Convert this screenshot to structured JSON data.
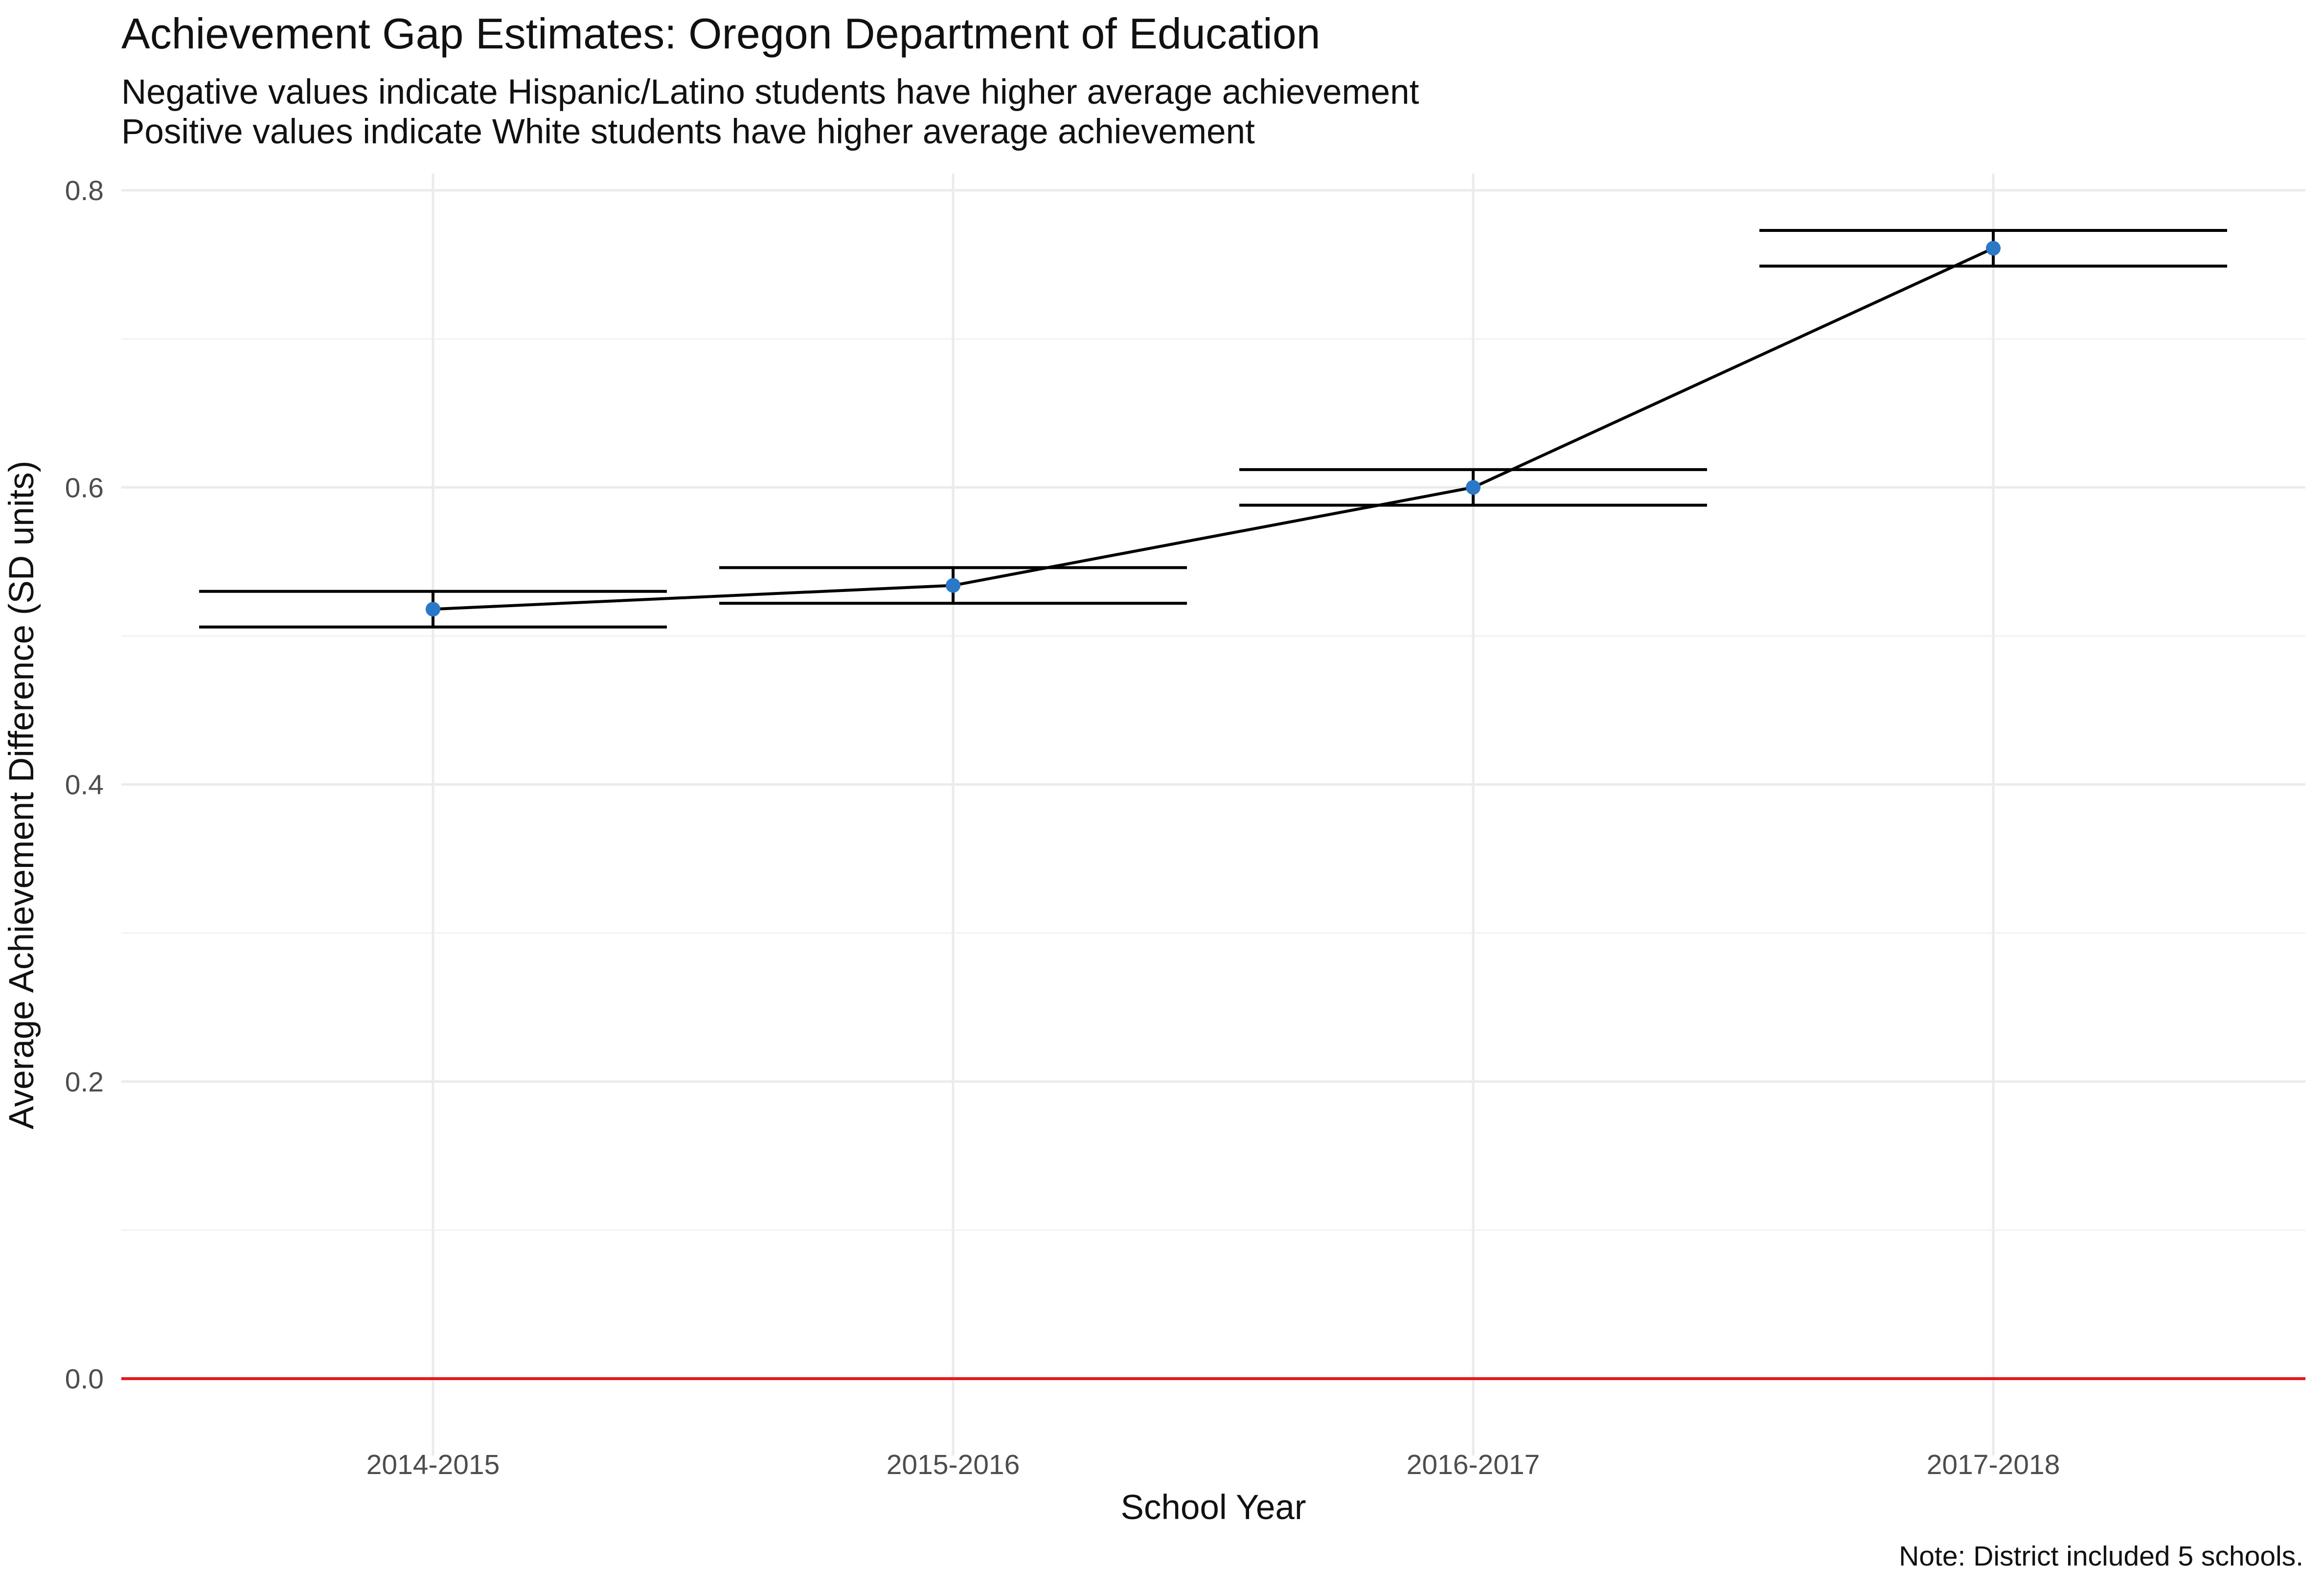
{
  "chart_data": {
    "type": "line",
    "title": "Achievement Gap Estimates: Oregon Department of Education",
    "subtitle": [
      "Negative values indicate Hispanic/Latino students have higher average achievement",
      "Positive values indicate White students have higher average achievement"
    ],
    "xlabel": "School Year",
    "ylabel": "Average Achievement Difference (SD units)",
    "caption": "Note: District included 5 schools.",
    "categories": [
      "2014-2015",
      "2015-2016",
      "2016-2017",
      "2017-2018"
    ],
    "series": [
      {
        "values": [
          0.518,
          0.534,
          0.6,
          0.761
        ],
        "error_lower": [
          0.506,
          0.522,
          0.588,
          0.749
        ],
        "error_upper": [
          0.53,
          0.546,
          0.612,
          0.773
        ],
        "point_color": "#2a78c8",
        "line_color": "#000000"
      }
    ],
    "reference_line": {
      "y": 0.0,
      "color": "#e41a1c"
    },
    "ylim": [
      0,
      0.8
    ],
    "yticks": [
      0.0,
      0.2,
      0.4,
      0.6,
      0.8
    ],
    "ytick_labels": [
      "0.0",
      "0.2",
      "0.4",
      "0.6",
      "0.8"
    ],
    "grid": true,
    "legend": "none"
  }
}
